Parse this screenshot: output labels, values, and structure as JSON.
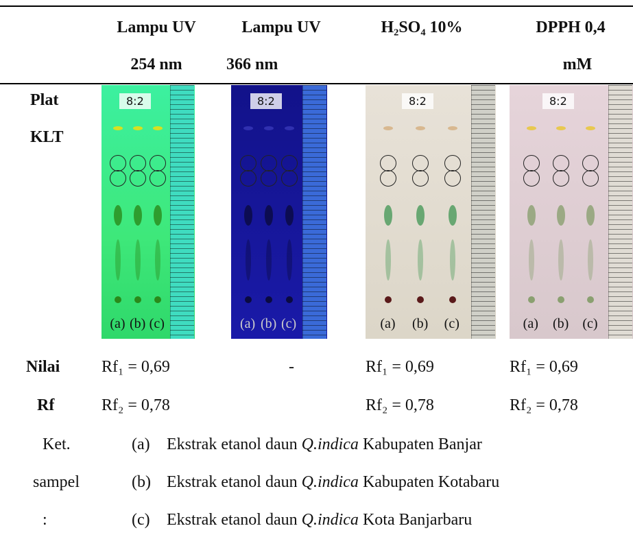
{
  "table": {
    "header": {
      "columns": [
        [
          "Lampu UV",
          "254 nm"
        ],
        [
          "Lampu UV",
          "366 nm"
        ],
        [
          "H₂SO₄ 10%"
        ],
        [
          "DPPH 0,4",
          "mM"
        ]
      ]
    },
    "rows": [
      {
        "label": [
          "Plat",
          "KLT"
        ]
      },
      {
        "label": [
          "Nilai",
          "Rf"
        ],
        "cells": [
          [
            "Rf₁ = 0,69",
            "Rf₂ = 0,78"
          ],
          [
            "-"
          ],
          [
            "Rf₁ = 0,69",
            "Rf₂ = 0,78"
          ],
          [
            "Rf₁ = 0,69",
            "Rf₂ = 0,78"
          ]
        ]
      }
    ],
    "plates": {
      "sample_label": "8:2",
      "lane_labels": [
        "(a)",
        "(b)",
        "(c)"
      ]
    }
  },
  "notes": {
    "label": [
      "Ket.",
      "sampel",
      ":"
    ],
    "items": [
      {
        "marker": "(a)",
        "prefix": "Ekstrak etanol daun ",
        "species": "Q.indica",
        "suffix": " Kabupaten Banjar"
      },
      {
        "marker": "(b)",
        "prefix": "Ekstrak etanol daun ",
        "species": "Q.indica",
        "suffix": " Kabupaten Kotabaru"
      },
      {
        "marker": "(c)",
        "prefix": "Ekstrak etanol daun ",
        "species": "Q.indica",
        "suffix": " Kota Banjarbaru"
      }
    ]
  }
}
